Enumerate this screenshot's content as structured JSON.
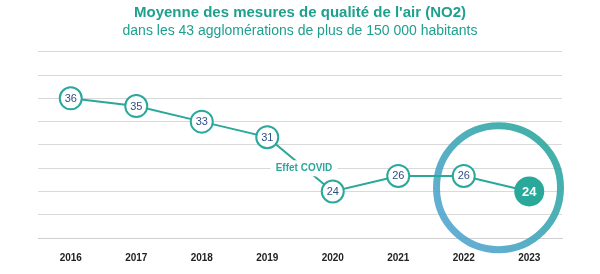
{
  "chart_data": {
    "type": "line",
    "title": "Moyenne des mesures de qualité de l'air (NO2)",
    "subtitle": "dans les 43 agglomérations de plus de 150 000 habitants",
    "categories": [
      "2016",
      "2017",
      "2018",
      "2019",
      "2020",
      "2021",
      "2022",
      "2023"
    ],
    "values": [
      36,
      35,
      33,
      31,
      24,
      26,
      26,
      24
    ],
    "color": "#2aa89a",
    "ylim": [
      18,
      42
    ],
    "yticks": [
      18,
      21,
      24,
      27,
      30,
      33,
      36,
      39,
      42
    ],
    "grid": true,
    "data_labels": true,
    "tick_labels": "x",
    "annotation": "Effet COVID"
  }
}
